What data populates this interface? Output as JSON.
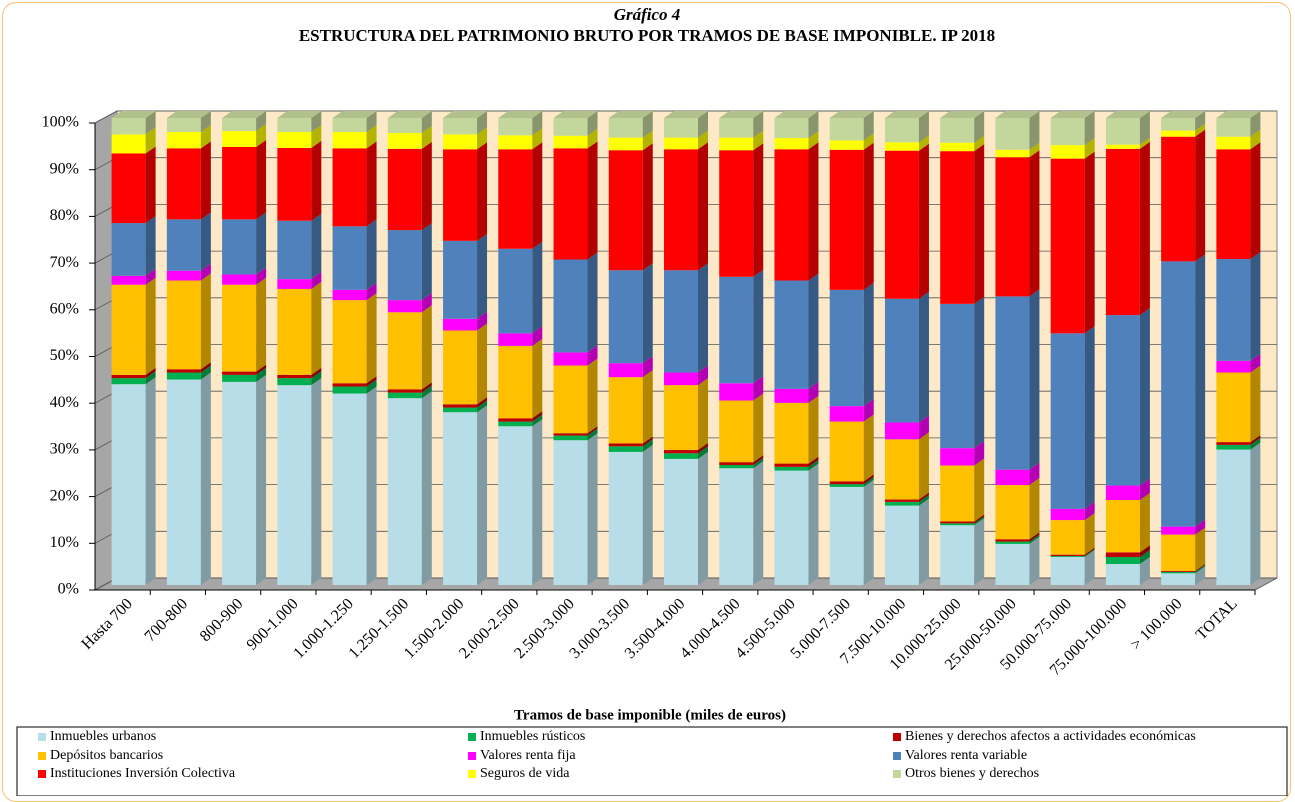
{
  "chart_data": {
    "type": "stacked_bar_3d",
    "title": "Gráfico 4",
    "subtitle": "ESTRUCTURA DEL PATRIMONIO BRUTO POR TRAMOS DE BASE IMPONIBLE. IP 2018",
    "x_label": "Tramos de base imponible (miles de euros)",
    "categories": [
      "Hasta 700",
      "700-800",
      "800-900",
      "900-1.000",
      "1.000-1.250",
      "1.250-1.500",
      "1.500-2.000",
      "2.000-2.500",
      "2.500-3.000",
      "3.000-3.500",
      "3.500-4.000",
      "4.000-4.500",
      "4.500-5.000",
      "5.000-7.500",
      "7.500-10.000",
      "10.000-25.000",
      "25.000-50.000",
      "50.000-75.000",
      "75.000-100.000",
      "> 100.000",
      "TOTAL"
    ],
    "ylim": [
      0,
      100
    ],
    "yticks": [
      {
        "value": 0,
        "label": "0%"
      },
      {
        "value": 10,
        "label": "10%"
      },
      {
        "value": 20,
        "label": "20%"
      },
      {
        "value": 30,
        "label": "30%"
      },
      {
        "value": 40,
        "label": "40%"
      },
      {
        "value": 50,
        "label": "50%"
      },
      {
        "value": 60,
        "label": "60%"
      },
      {
        "value": 70,
        "label": "70%"
      },
      {
        "value": 80,
        "label": "80%"
      },
      {
        "value": 90,
        "label": "90%"
      },
      {
        "value": 100,
        "label": "100%"
      }
    ],
    "grid": true,
    "legend": "bottom",
    "series": [
      {
        "name": "Inmuebles urbanos",
        "color": "#b7dde8",
        "values": [
          43,
          44,
          43.5,
          42.8,
          41,
          40,
          37,
          34,
          31,
          28.5,
          27,
          25,
          24.5,
          21,
          17,
          12.8,
          8.8,
          6,
          4.5,
          2.5,
          29
        ]
      },
      {
        "name": "Inmuebles rústicos",
        "color": "#00b050",
        "values": [
          1.3,
          1.5,
          1.5,
          1.5,
          1.5,
          1.2,
          1,
          1,
          1,
          1.2,
          1.2,
          0.7,
          0.8,
          0.6,
          0.8,
          0.4,
          0.5,
          0.2,
          1.5,
          0.3,
          1
        ]
      },
      {
        "name": "Bienes y derechos afectos a actividades económicas",
        "color": "#c00000",
        "values": [
          0.7,
          0.7,
          0.7,
          0.7,
          0.7,
          0.7,
          0.7,
          0.7,
          0.5,
          0.6,
          0.7,
          0.6,
          0.7,
          0.6,
          0.5,
          0.4,
          0.5,
          0.3,
          1,
          0.2,
          0.6
        ]
      },
      {
        "name": "Depósitos bancarios",
        "color": "#ffc000",
        "values": [
          19.3,
          19,
          18.6,
          18.4,
          17.8,
          16.5,
          15.8,
          15.5,
          14.5,
          14.2,
          13.9,
          13.2,
          13,
          12.8,
          12.9,
          12,
          11.6,
          7.4,
          11.2,
          7.8,
          14.9
        ]
      },
      {
        "name": "Valores renta fija",
        "color": "#ff00ff",
        "values": [
          1.9,
          2.1,
          2.2,
          2.1,
          2.2,
          2.6,
          2.5,
          2.7,
          2.8,
          3,
          2.7,
          3.7,
          3,
          3.3,
          3.6,
          3.7,
          3.3,
          2.4,
          3.1,
          1.7,
          2.5
        ]
      },
      {
        "name": "Valores renta variable",
        "color": "#4f81bd",
        "values": [
          11.3,
          11,
          11.8,
          12.5,
          13.6,
          15,
          16.7,
          18.1,
          19.9,
          19.9,
          21.9,
          22.8,
          23.2,
          24.9,
          26.5,
          30.9,
          37.1,
          37.6,
          36.5,
          56.8,
          21.8
        ]
      },
      {
        "name": "Instituciones Inversión Colectiva",
        "color": "#ff0000",
        "values": [
          14.9,
          15.2,
          15.5,
          15.6,
          16.7,
          17.4,
          19.6,
          21.3,
          23.8,
          25.7,
          25.9,
          27.1,
          28.1,
          30,
          31.7,
          32.7,
          29.8,
          37.4,
          35.6,
          26.7,
          23.5
        ]
      },
      {
        "name": "Seguros de vida",
        "color": "#ffff00",
        "values": [
          4.1,
          3.5,
          3.4,
          3.4,
          3.5,
          3.4,
          3.2,
          3,
          2.7,
          2.7,
          2.5,
          2.7,
          2.4,
          2,
          1.8,
          1.8,
          1.6,
          2.9,
          0.9,
          1.3,
          2.7
        ]
      },
      {
        "name": "Otros bienes y derechos",
        "color": "#c3d69b",
        "values": [
          3.5,
          3,
          2.8,
          3,
          3,
          3.2,
          3.5,
          3.7,
          3.8,
          4.2,
          4.2,
          4.2,
          4.3,
          4.8,
          5.2,
          5.3,
          6.8,
          5.8,
          5.7,
          2.7,
          4
        ]
      }
    ]
  }
}
